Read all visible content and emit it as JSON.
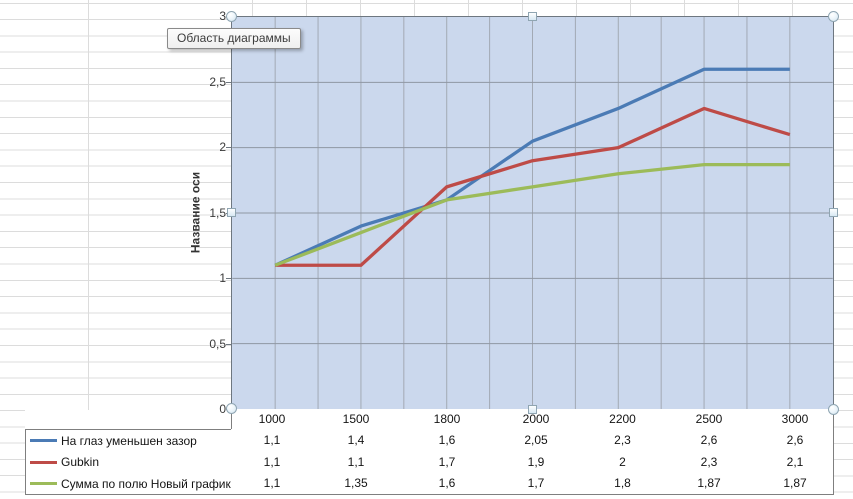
{
  "tooltip": {
    "text": "Область диаграммы"
  },
  "chart_data": {
    "type": "line",
    "title": "",
    "xlabel": "",
    "ylabel": "Название оси",
    "categories": [
      "1000",
      "1500",
      "1800",
      "2000",
      "2200",
      "2500",
      "3000"
    ],
    "x_numeric": [
      1000,
      1500,
      1800,
      2000,
      2200,
      2500,
      3000
    ],
    "series": [
      {
        "name": "На глаз уменьшен зазор",
        "color": "#4B7BB5",
        "values": [
          1.1,
          1.4,
          1.6,
          2.05,
          2.3,
          2.6,
          2.6
        ],
        "values_display": [
          "1,1",
          "1,4",
          "1,6",
          "2,05",
          "2,3",
          "2,6",
          "2,6"
        ]
      },
      {
        "name": "Gubkin",
        "color": "#BE4B47",
        "values": [
          1.1,
          1.1,
          1.7,
          1.9,
          2,
          2.3,
          2.1
        ],
        "values_display": [
          "1,1",
          "1,1",
          "1,7",
          "1,9",
          "2",
          "2,3",
          "2,1"
        ]
      },
      {
        "name": "Сумма по полю Новый график",
        "color": "#9CBB59",
        "values": [
          1.1,
          1.35,
          1.6,
          1.7,
          1.8,
          1.87,
          1.87
        ],
        "values_display": [
          "1,1",
          "1,35",
          "1,6",
          "1,7",
          "1,8",
          "1,87",
          "1,87"
        ]
      }
    ],
    "ylim": [
      0,
      3
    ],
    "ytick_step": 0.5,
    "yticks_display": [
      "0",
      "0,5",
      "1",
      "1,5",
      "2",
      "2,5",
      "3"
    ],
    "grid": true,
    "legend_position": "data-table",
    "plot_bg": "#cbd8ed",
    "gridline_color_h": "#8f97a3",
    "gridline_color_v": "#a2a9b4"
  }
}
